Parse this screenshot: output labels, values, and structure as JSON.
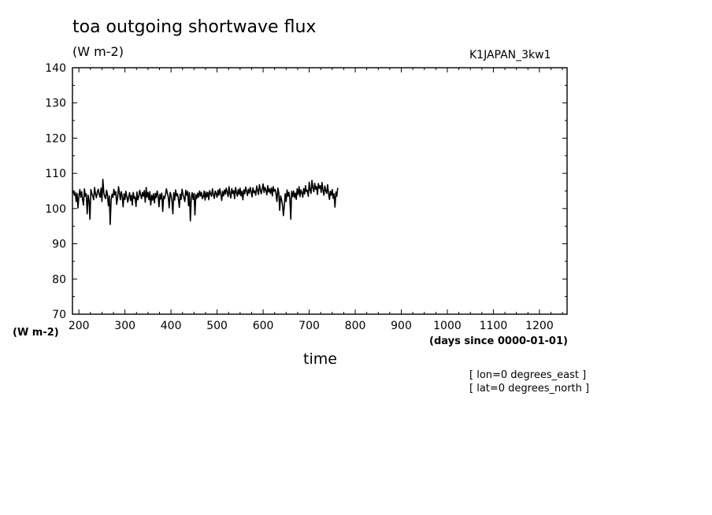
{
  "header": {
    "title": "toa outgoing shortwave flux",
    "units": "(W m-2)",
    "run_name": "K1JAPAN_3kw1"
  },
  "axes": {
    "y_unit": "(W m-2)",
    "x_unit": "(days since 0000-01-01)",
    "x_title": "time"
  },
  "footer": {
    "lon": "[ lon=0 degrees_east ]",
    "lat": "[ lat=0 degrees_north ]"
  },
  "chart_data": {
    "type": "line",
    "title": "toa outgoing shortwave flux",
    "xlabel": "time",
    "ylabel": "(W m-2)",
    "xlim": [
      186,
      1260
    ],
    "ylim": [
      70,
      140
    ],
    "x_ticks": [
      200,
      300,
      400,
      500,
      600,
      700,
      800,
      900,
      1000,
      1100,
      1200
    ],
    "y_ticks": [
      70,
      80,
      90,
      100,
      110,
      120,
      130,
      140
    ],
    "grid": false,
    "series": [
      {
        "x_start": 186,
        "x_step": 2,
        "values": [
          104.5,
          105,
          103.8,
          104.6,
          102,
          104.3,
          100.2,
          103.6,
          105.4,
          103.2,
          104.8,
          102.4,
          101,
          105.6,
          103.5,
          104.2,
          98.5,
          103.8,
          102.2,
          97,
          105.4,
          104.2,
          103.6,
          102.5,
          106,
          104.2,
          103.1,
          104.6,
          105.5,
          104.1,
          103.2,
          105.8,
          102,
          108.3,
          104.5,
          103.4,
          102.8,
          105.2,
          104,
          100.8,
          103.6,
          95.5,
          102.4,
          104.1,
          103.2,
          105.5,
          103.9,
          104.8,
          101.2,
          103,
          106.2,
          104.6,
          102.5,
          104.8,
          103.4,
          100.5,
          104.2,
          102.6,
          104.9,
          103.5,
          101.8,
          103.2,
          104.5,
          102.3,
          103.8,
          101,
          104.6,
          102.9,
          103.3,
          100.6,
          104.7,
          102.5,
          103.4,
          105.2,
          104,
          102.8,
          104.6,
          103.5,
          105.1,
          101.8,
          106,
          103.2,
          104.6,
          102.5,
          104.8,
          101,
          103.8,
          102.4,
          104.2,
          101.6,
          104.3,
          103.1,
          105,
          103.5,
          100.5,
          104.1,
          102.7,
          104.4,
          99.2,
          103.5,
          102.8,
          104,
          105.6,
          104.3,
          103.4,
          100.2,
          104.6,
          103.9,
          102.2,
          98.5,
          104.5,
          102.4,
          105.3,
          103.6,
          104.2,
          102.8,
          100.3,
          104.1,
          102.6,
          105.5,
          104,
          103.1,
          102,
          105.2,
          103.8,
          104.9,
          100.8,
          104.5,
          96.5,
          103.1,
          104.5,
          102.6,
          104.3,
          98.2,
          104,
          102.9,
          104.4,
          103.2,
          105,
          103.6,
          104.6,
          102.8,
          103.4,
          105,
          102.4,
          104.7,
          103.3,
          104.6,
          102.5,
          105.1,
          104.2,
          103.5,
          105.6,
          104,
          102.9,
          105,
          104.3,
          103.2,
          105.2,
          103.8,
          105.6,
          104.2,
          102.3,
          104.9,
          103.6,
          105.3,
          104.1,
          105.8,
          104.5,
          103.4,
          106.2,
          104.1,
          103,
          105.7,
          104.3,
          105.1,
          102.8,
          106,
          104.6,
          103.5,
          105.4,
          104,
          105.8,
          103.6,
          104.9,
          102.5,
          105.3,
          104.2,
          106.1,
          105,
          103.7,
          105.5,
          104.4,
          106,
          104.8,
          103.3,
          105.9,
          104.5,
          105,
          103.8,
          106.4,
          105.1,
          104,
          106.8,
          105.3,
          104.2,
          105.7,
          107,
          104.6,
          106,
          105.2,
          103.9,
          106.5,
          104.7,
          105.6,
          104.3,
          105.9,
          103.6,
          106.2,
          104.9,
          105.4,
          104.1,
          102,
          105.8,
          104.4,
          99.5,
          103.6,
          102.5,
          101.2,
          98,
          100.8,
          104.2,
          102,
          105.3,
          103.5,
          104.6,
          102.8,
          97,
          104.9,
          103.4,
          105,
          103.1,
          104.4,
          102.6,
          105.6,
          104,
          106.2,
          103.4,
          105.3,
          104.5,
          103.2,
          105.7,
          104.1,
          106.5,
          104.8,
          105.2,
          103.5,
          107.5,
          105.4,
          104.3,
          108,
          106,
          104.8,
          107.2,
          105.5,
          106.3,
          104,
          107.1,
          105.8,
          106.5,
          104.6,
          107.4,
          105.1,
          103.8,
          106.4,
          105,
          104.3,
          106.8,
          104.4,
          102.6,
          104.9,
          103.8,
          105.4,
          102.9,
          104.2,
          100.4,
          104.7,
          103.5,
          105.9
        ]
      }
    ]
  }
}
